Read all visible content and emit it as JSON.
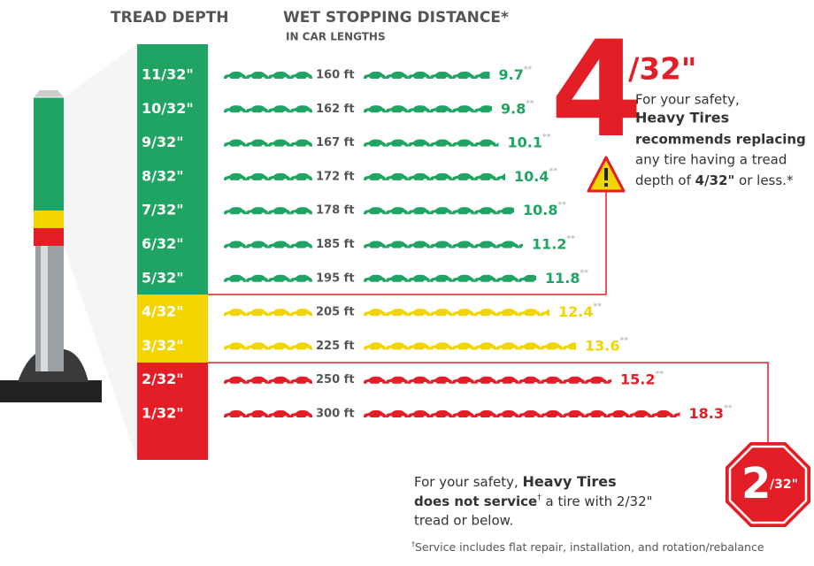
{
  "header": {
    "tread_depth": "TREAD DEPTH",
    "wet_stopping": "WET STOPPING DISTANCE*",
    "unit": "IN CAR LENGTHS"
  },
  "footnote_mark": "**",
  "rows": [
    {
      "depth": "11/32\"",
      "distance": "160 ft",
      "car_lengths": 9.7,
      "color": "#1fa463"
    },
    {
      "depth": "10/32\"",
      "distance": "162 ft",
      "car_lengths": 9.8,
      "color": "#1fa463"
    },
    {
      "depth": "9/32\"",
      "distance": "167 ft",
      "car_lengths": 10.1,
      "color": "#1fa463"
    },
    {
      "depth": "8/32\"",
      "distance": "172 ft",
      "car_lengths": 10.4,
      "color": "#1fa463"
    },
    {
      "depth": "7/32\"",
      "distance": "178 ft",
      "car_lengths": 10.8,
      "color": "#1fa463"
    },
    {
      "depth": "6/32\"",
      "distance": "185 ft",
      "car_lengths": 11.2,
      "color": "#1fa463"
    },
    {
      "depth": "5/32\"",
      "distance": "195 ft",
      "car_lengths": 11.8,
      "color": "#1fa463"
    },
    {
      "depth": "4/32\"",
      "distance": "205 ft",
      "car_lengths": 12.4,
      "color": "#f2d500"
    },
    {
      "depth": "3/32\"",
      "distance": "225 ft",
      "car_lengths": 13.6,
      "color": "#f2d500"
    },
    {
      "depth": "2/32\"",
      "distance": "250 ft",
      "car_lengths": 15.2,
      "color": "#e41e26"
    },
    {
      "depth": "1/32\"",
      "distance": "300 ft",
      "car_lengths": 18.3,
      "color": "#e41e26"
    }
  ],
  "callout": {
    "big": "4",
    "fraction": "/32\"",
    "line1": "For your safety,",
    "brand": "Heavy Tires",
    "line3": "recommends replacing",
    "line4": "any tire having a tread",
    "line5a": "depth of ",
    "line5b": "4/32\"",
    "line5c": " or less.*"
  },
  "service": {
    "line1a": "For your safety, ",
    "brand": "Heavy Tires",
    "line2a": "does not service",
    "dagger": "†",
    "line2b": " a tire with 2/32\"",
    "line3": "tread or below.",
    "sign_big": "2",
    "sign_small": "/32\""
  },
  "footnote": {
    "dagger": "†",
    "text": "Service includes flat repair, installation, and rotation/rebalance"
  }
}
